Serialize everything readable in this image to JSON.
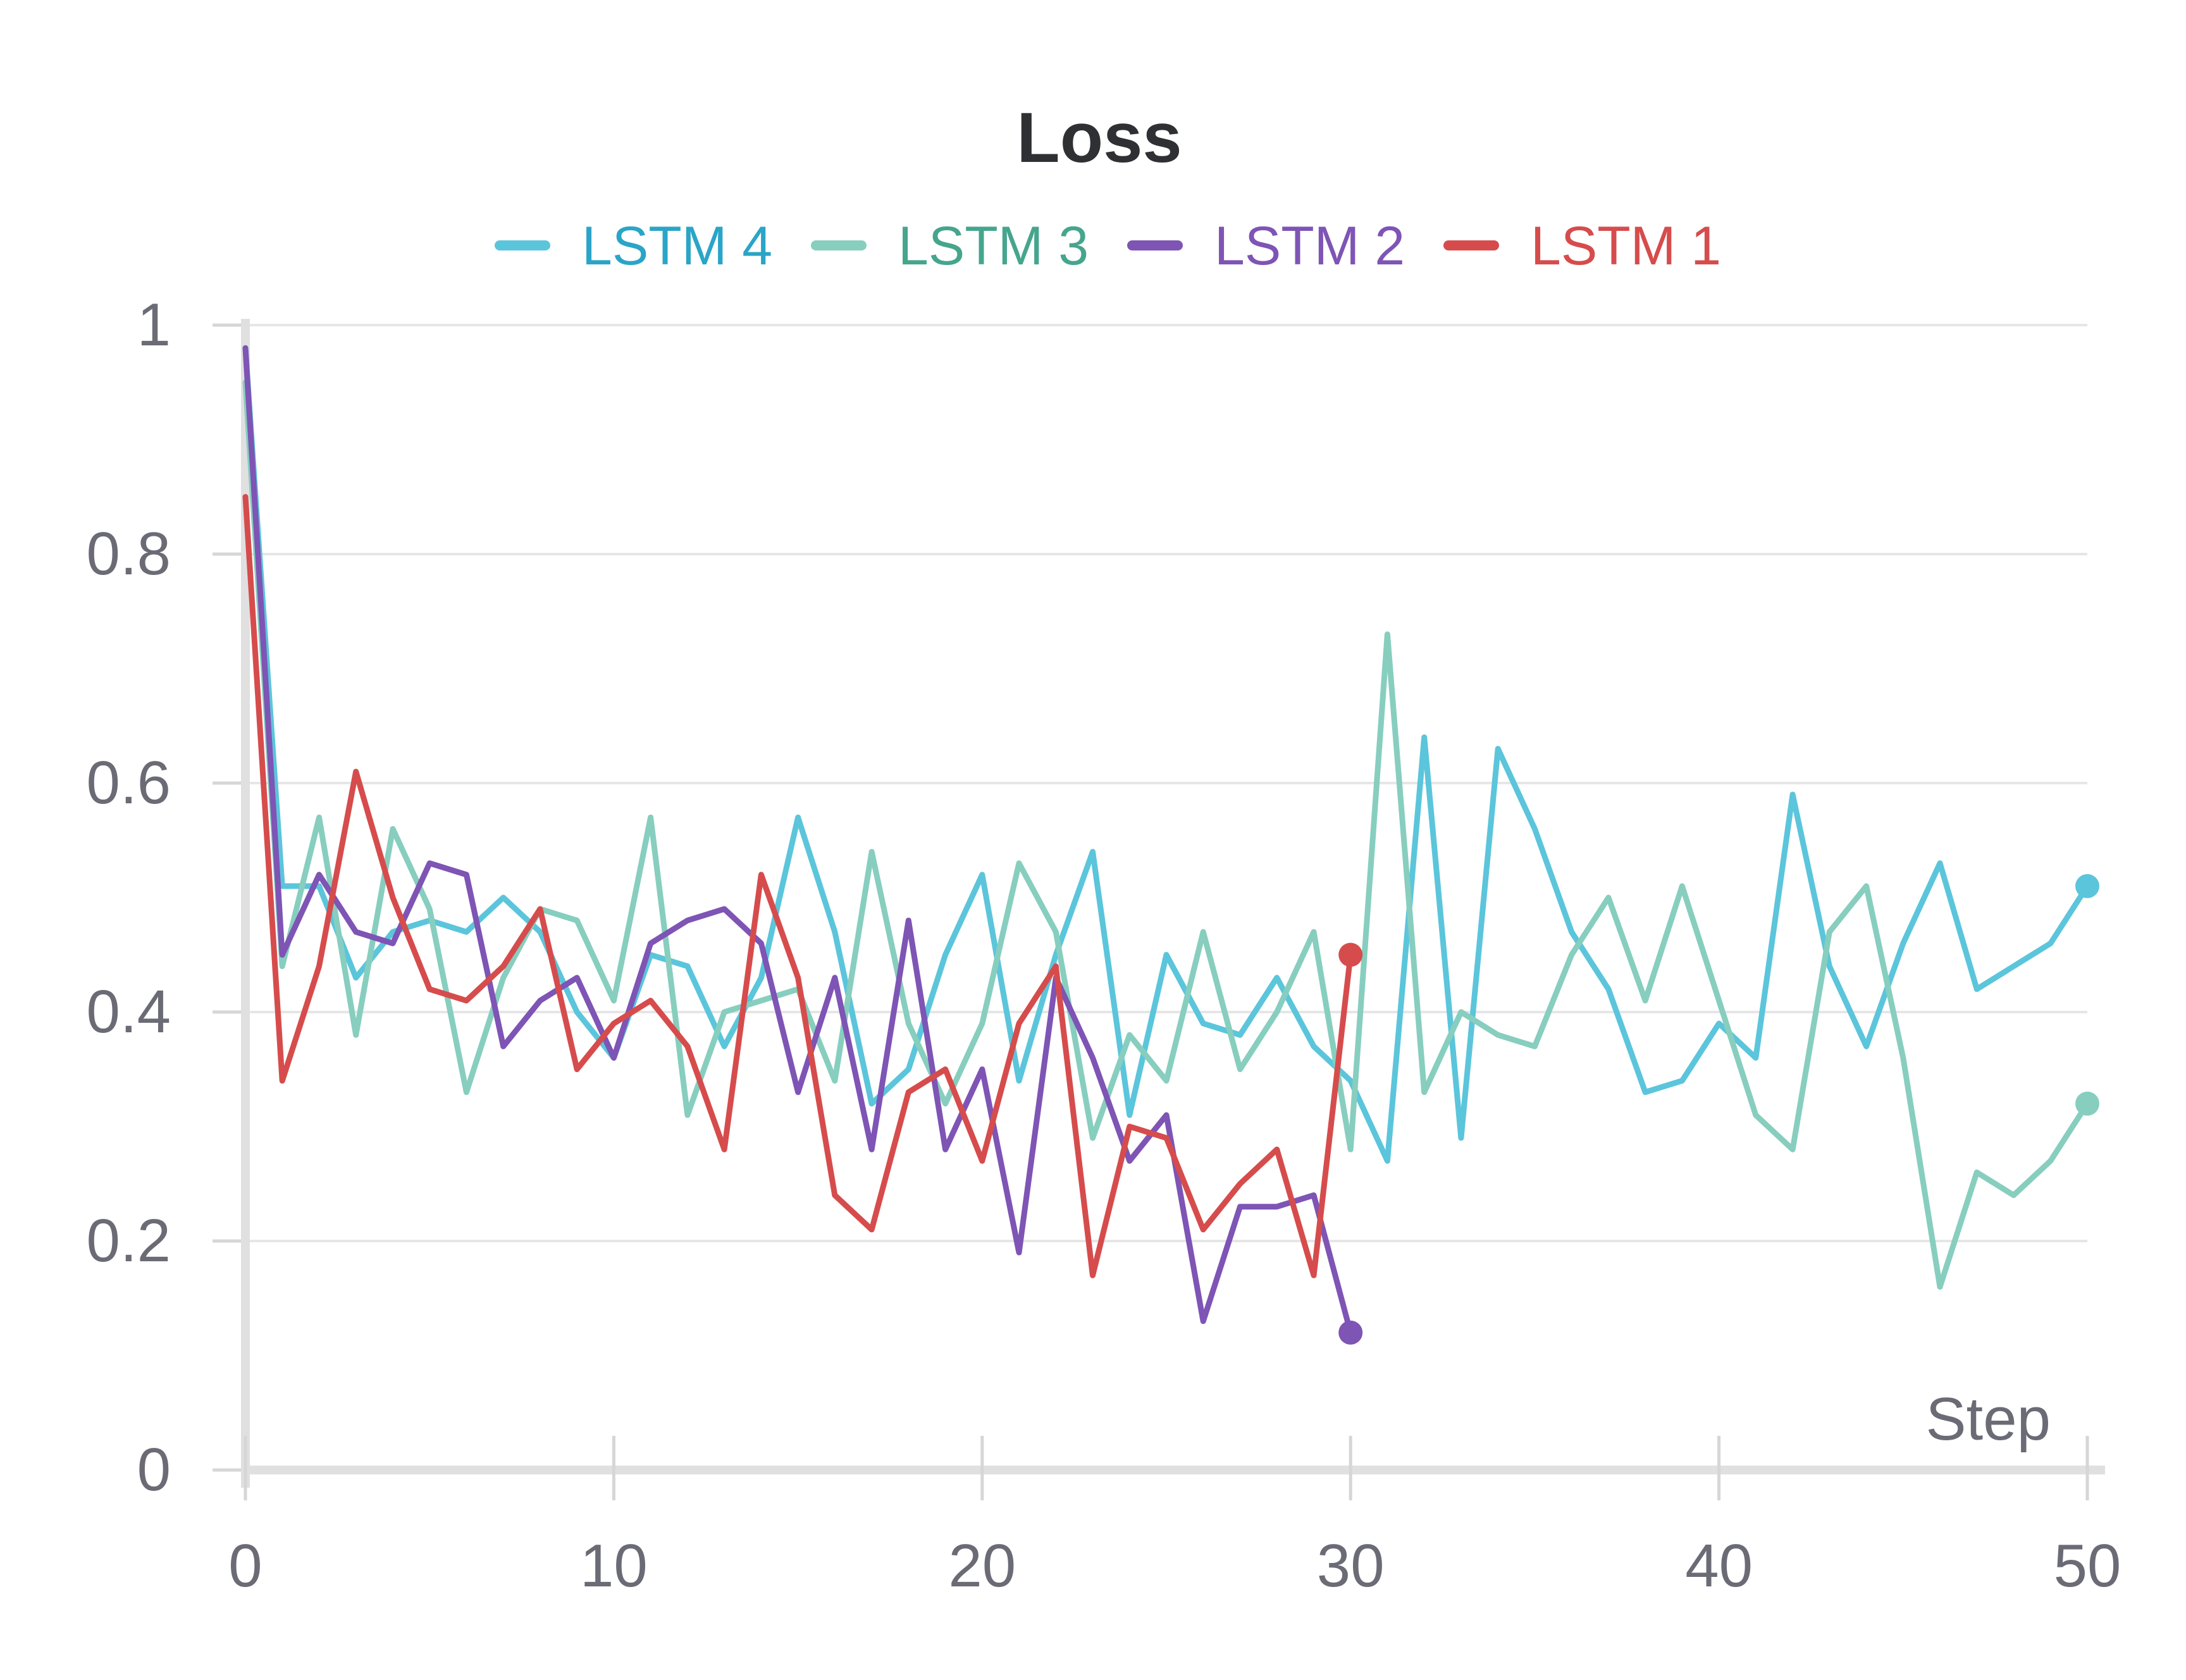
{
  "chart_data": {
    "type": "line",
    "title": "Loss",
    "xlabel": "Step",
    "ylabel": "",
    "xlim": [
      0,
      50
    ],
    "ylim": [
      0,
      1
    ],
    "xticks": [
      "0",
      "10",
      "20",
      "30",
      "40",
      "50"
    ],
    "yticks": [
      "0",
      "0.2",
      "0.4",
      "0.6",
      "0.8",
      "1"
    ],
    "grid": true,
    "legend_position": "top",
    "series": [
      {
        "name": "LSTM 4",
        "color": "#5bc5db",
        "x": [
          0,
          1,
          2,
          3,
          4,
          5,
          6,
          7,
          8,
          9,
          10,
          11,
          12,
          13,
          14,
          15,
          16,
          17,
          18,
          19,
          20,
          21,
          22,
          23,
          24,
          25,
          26,
          27,
          28,
          29,
          30,
          31,
          32,
          33,
          34,
          35,
          36,
          37,
          38,
          39,
          40,
          41,
          42,
          43,
          44,
          45,
          46,
          47,
          48,
          49,
          50
        ],
        "y": [
          0.98,
          0.51,
          0.51,
          0.43,
          0.47,
          0.48,
          0.47,
          0.5,
          0.47,
          0.4,
          0.36,
          0.45,
          0.44,
          0.37,
          0.43,
          0.57,
          0.47,
          0.32,
          0.35,
          0.45,
          0.52,
          0.34,
          0.45,
          0.54,
          0.31,
          0.45,
          0.39,
          0.38,
          0.43,
          0.37,
          0.34,
          0.27,
          0.64,
          0.29,
          0.63,
          0.56,
          0.47,
          0.42,
          0.33,
          0.34,
          0.39,
          0.36,
          0.59,
          0.44,
          0.37,
          0.46,
          0.53,
          0.42,
          0.44,
          0.46,
          0.51
        ]
      },
      {
        "name": "LSTM 3",
        "color": "#87cebf",
        "x": [
          0,
          1,
          2,
          3,
          4,
          5,
          6,
          7,
          8,
          9,
          10,
          11,
          12,
          13,
          14,
          15,
          16,
          17,
          18,
          19,
          20,
          21,
          22,
          23,
          24,
          25,
          26,
          27,
          28,
          29,
          30,
          31,
          32,
          33,
          34,
          35,
          36,
          37,
          38,
          39,
          40,
          41,
          42,
          43,
          44,
          45,
          46,
          47,
          48,
          49,
          50
        ],
        "y": [
          0.95,
          0.44,
          0.57,
          0.38,
          0.56,
          0.49,
          0.33,
          0.43,
          0.49,
          0.48,
          0.41,
          0.57,
          0.31,
          0.4,
          0.41,
          0.42,
          0.34,
          0.54,
          0.39,
          0.32,
          0.39,
          0.53,
          0.47,
          0.29,
          0.38,
          0.34,
          0.47,
          0.35,
          0.4,
          0.47,
          0.28,
          0.73,
          0.33,
          0.4,
          0.38,
          0.37,
          0.45,
          0.5,
          0.41,
          0.51,
          0.41,
          0.31,
          0.28,
          0.47,
          0.51,
          0.36,
          0.16,
          0.26,
          0.24,
          0.27,
          0.32
        ]
      },
      {
        "name": "LSTM 2",
        "color": "#7e54b5",
        "x": [
          0,
          1,
          2,
          3,
          4,
          5,
          6,
          7,
          8,
          9,
          10,
          11,
          12,
          13,
          14,
          15,
          16,
          17,
          18,
          19,
          20,
          21,
          22,
          23,
          24,
          25,
          26,
          27,
          28,
          29,
          30
        ],
        "y": [
          0.98,
          0.45,
          0.52,
          0.47,
          0.46,
          0.53,
          0.52,
          0.37,
          0.41,
          0.43,
          0.36,
          0.46,
          0.48,
          0.49,
          0.46,
          0.33,
          0.43,
          0.28,
          0.48,
          0.28,
          0.35,
          0.19,
          0.43,
          0.36,
          0.27,
          0.31,
          0.13,
          0.23,
          0.23,
          0.24,
          0.12
        ]
      },
      {
        "name": "LSTM 1",
        "color": "#d64c4c",
        "x": [
          0,
          1,
          2,
          3,
          4,
          5,
          6,
          7,
          8,
          9,
          10,
          11,
          12,
          13,
          14,
          15,
          16,
          17,
          18,
          19,
          20,
          21,
          22,
          23,
          24,
          25,
          26,
          27,
          28,
          29,
          30
        ],
        "y": [
          0.85,
          0.34,
          0.44,
          0.61,
          0.5,
          0.42,
          0.41,
          0.44,
          0.49,
          0.35,
          0.39,
          0.41,
          0.37,
          0.28,
          0.52,
          0.43,
          0.24,
          0.21,
          0.33,
          0.35,
          0.27,
          0.39,
          0.44,
          0.17,
          0.3,
          0.29,
          0.21,
          0.25,
          0.28,
          0.17,
          0.45
        ]
      }
    ]
  }
}
